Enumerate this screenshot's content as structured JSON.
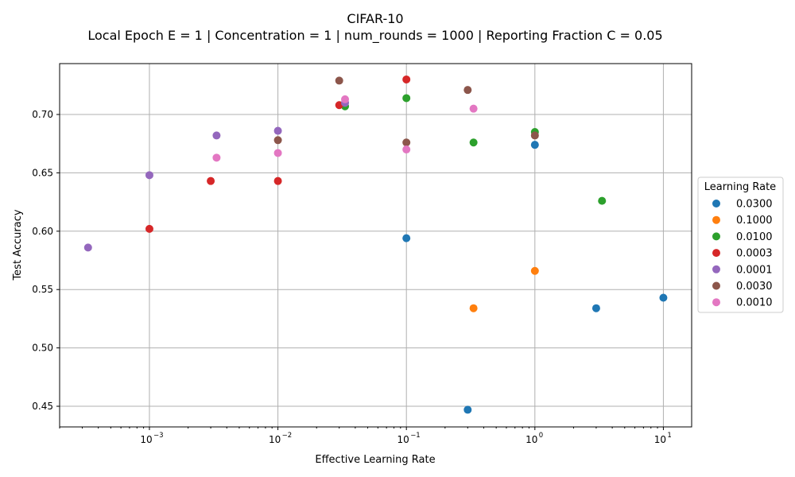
{
  "chart_data": {
    "type": "scatter",
    "title": "CIFAR-10",
    "subtitle": "Local Epoch E = 1 | Concentration = 1 | num_rounds = 1000 | Reporting Fraction C = 0.05",
    "xlabel": "Effective Learning Rate",
    "ylabel": "Test Accuracy",
    "xscale": "log",
    "xlim": [
      0.0002,
      16.6
    ],
    "ylim": [
      0.4323,
      0.7436
    ],
    "grid": true,
    "x_ticks": [
      {
        "value": 0.001,
        "base": "10",
        "exp": "−3"
      },
      {
        "value": 0.01,
        "base": "10",
        "exp": "−2"
      },
      {
        "value": 0.1,
        "base": "10",
        "exp": "−1"
      },
      {
        "value": 1,
        "base": "10",
        "exp": "0"
      },
      {
        "value": 10,
        "base": "10",
        "exp": "1"
      }
    ],
    "y_ticks": [
      {
        "value": 0.45,
        "label": "0.45"
      },
      {
        "value": 0.5,
        "label": "0.50"
      },
      {
        "value": 0.55,
        "label": "0.55"
      },
      {
        "value": 0.6,
        "label": "0.60"
      },
      {
        "value": 0.65,
        "label": "0.65"
      },
      {
        "value": 0.7,
        "label": "0.70"
      }
    ],
    "legend": {
      "title": "Learning Rate",
      "placement": "center-right outside"
    },
    "series": [
      {
        "name": "0.0300",
        "color": "#1f77b4",
        "x": [
          0.1,
          1,
          0.3,
          3,
          10
        ],
        "y": [
          0.594,
          0.674,
          0.447,
          0.534,
          0.543
        ]
      },
      {
        "name": "0.1000",
        "color": "#ff7f0e",
        "x": [
          1,
          0.333
        ],
        "y": [
          0.566,
          0.534
        ]
      },
      {
        "name": "0.0100",
        "color": "#2ca02c",
        "x": [
          0.0333,
          0.1,
          0.333,
          1,
          3.33
        ],
        "y": [
          0.707,
          0.714,
          0.676,
          0.685,
          0.626
        ]
      },
      {
        "name": "0.0003",
        "color": "#d62728",
        "x": [
          0.001,
          0.003,
          0.01,
          0.03,
          0.1
        ],
        "y": [
          0.602,
          0.643,
          0.643,
          0.708,
          0.73
        ]
      },
      {
        "name": "0.0001",
        "color": "#9467bd",
        "x": [
          0.000333,
          0.001,
          0.00333,
          0.01,
          0.0333
        ],
        "y": [
          0.586,
          0.648,
          0.682,
          0.686,
          0.71
        ]
      },
      {
        "name": "0.0030",
        "color": "#8c564b",
        "x": [
          0.03,
          0.01,
          0.1,
          0.3,
          1
        ],
        "y": [
          0.729,
          0.678,
          0.676,
          0.721,
          0.682
        ]
      },
      {
        "name": "0.0010",
        "color": "#e377c2",
        "x": [
          0.00333,
          0.01,
          0.0333,
          0.1,
          0.333
        ],
        "y": [
          0.663,
          0.667,
          0.713,
          0.67,
          0.705
        ]
      }
    ]
  }
}
